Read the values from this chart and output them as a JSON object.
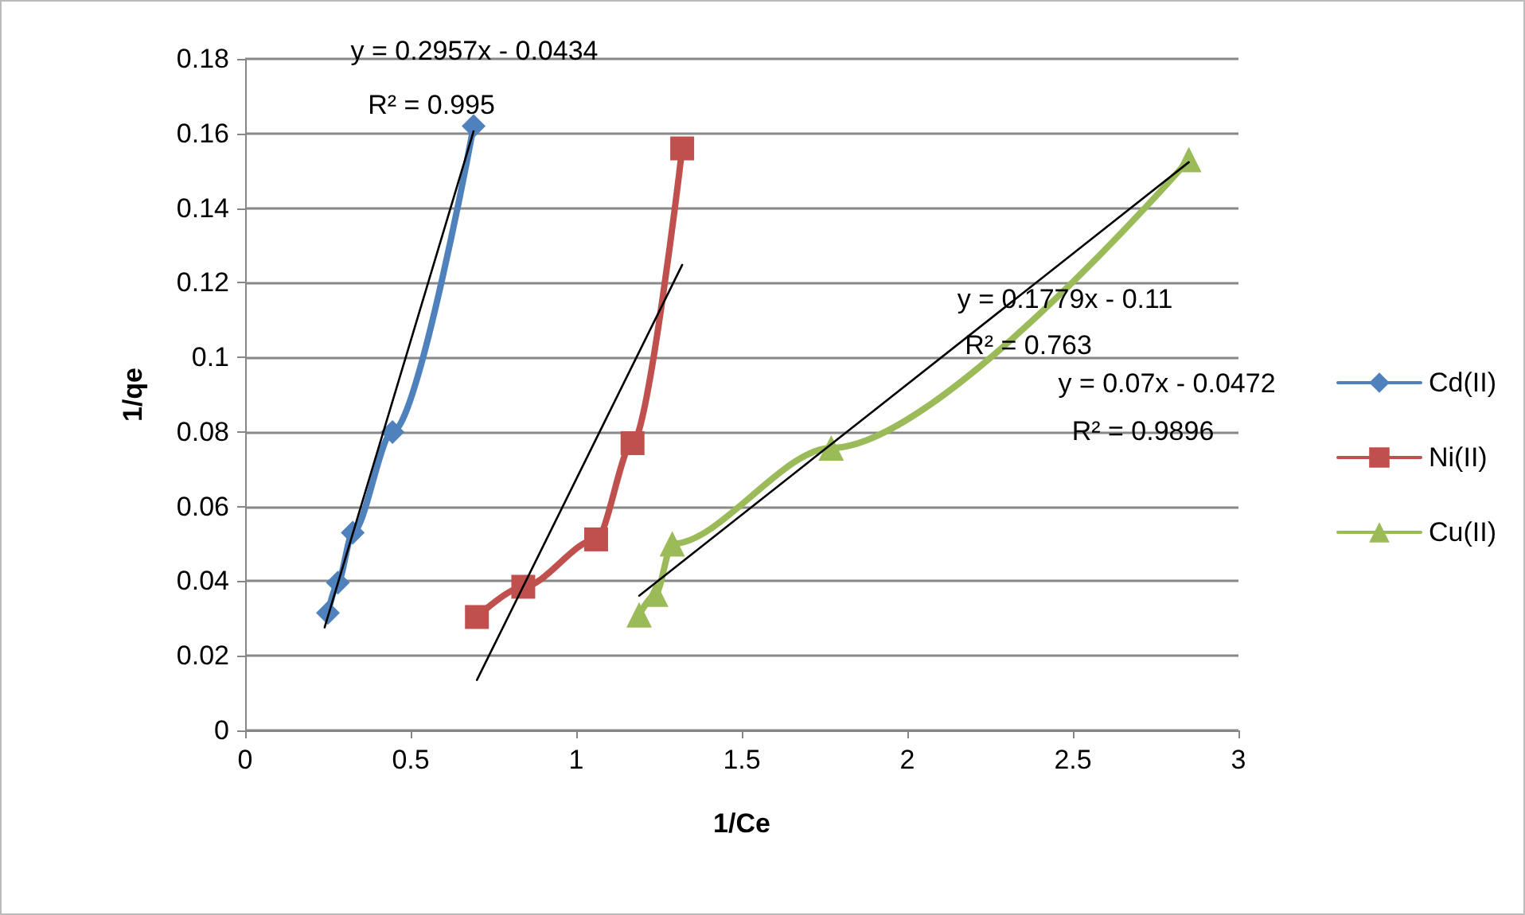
{
  "chart_data": {
    "type": "line",
    "xlabel": "1/Ce",
    "ylabel": "1/qe",
    "xlim": [
      0,
      3
    ],
    "xticks": [
      0,
      0.5,
      1,
      1.5,
      2,
      2.5,
      3
    ],
    "ylim": [
      0,
      0.18
    ],
    "yticks": [
      0,
      0.02,
      0.04,
      0.06,
      0.08,
      0.1,
      0.12,
      0.14,
      0.16,
      0.18
    ],
    "grid": "y",
    "legend": "right",
    "series": [
      {
        "name": "Cd(II)",
        "color": "#4f81bd",
        "marker": "diamond",
        "x": [
          0.25,
          0.28,
          0.325,
          0.445,
          0.69
        ],
        "values": [
          0.0315,
          0.0396,
          0.053,
          0.08,
          0.162
        ]
      },
      {
        "name": "Ni(II)",
        "color": "#c0504d",
        "marker": "square",
        "x": [
          0.7,
          0.84,
          1.06,
          1.17,
          1.32
        ],
        "values": [
          0.0304,
          0.0385,
          0.0512,
          0.077,
          0.156
        ]
      },
      {
        "name": "Cu(II)",
        "color": "#9bbb59",
        "marker": "triangle",
        "x": [
          1.19,
          1.24,
          1.29,
          1.77,
          2.85
        ],
        "values": [
          0.031,
          0.0365,
          0.05,
          0.0757,
          0.153
        ]
      },
      {
        "color": "#000000",
        "marker": "none",
        "x": [
          0.24,
          0.69
        ],
        "values": [
          0.0276,
          0.1606
        ]
      },
      {
        "color": "#000000",
        "marker": "none",
        "x": [
          0.7,
          1.32
        ],
        "values": [
          0.0135,
          0.1248
        ]
      },
      {
        "color": "#000000",
        "marker": "none",
        "x": [
          1.19,
          2.85
        ],
        "values": [
          0.0361,
          0.1523
        ]
      }
    ],
    "annotations": [
      "y = 0.2957x - 0.0434",
      "R² = 0.995",
      "y = 0.1779x - 0.11",
      "R² = 0.763",
      "y = 0.07x - 0.0472",
      "R² = 0.9896"
    ]
  }
}
